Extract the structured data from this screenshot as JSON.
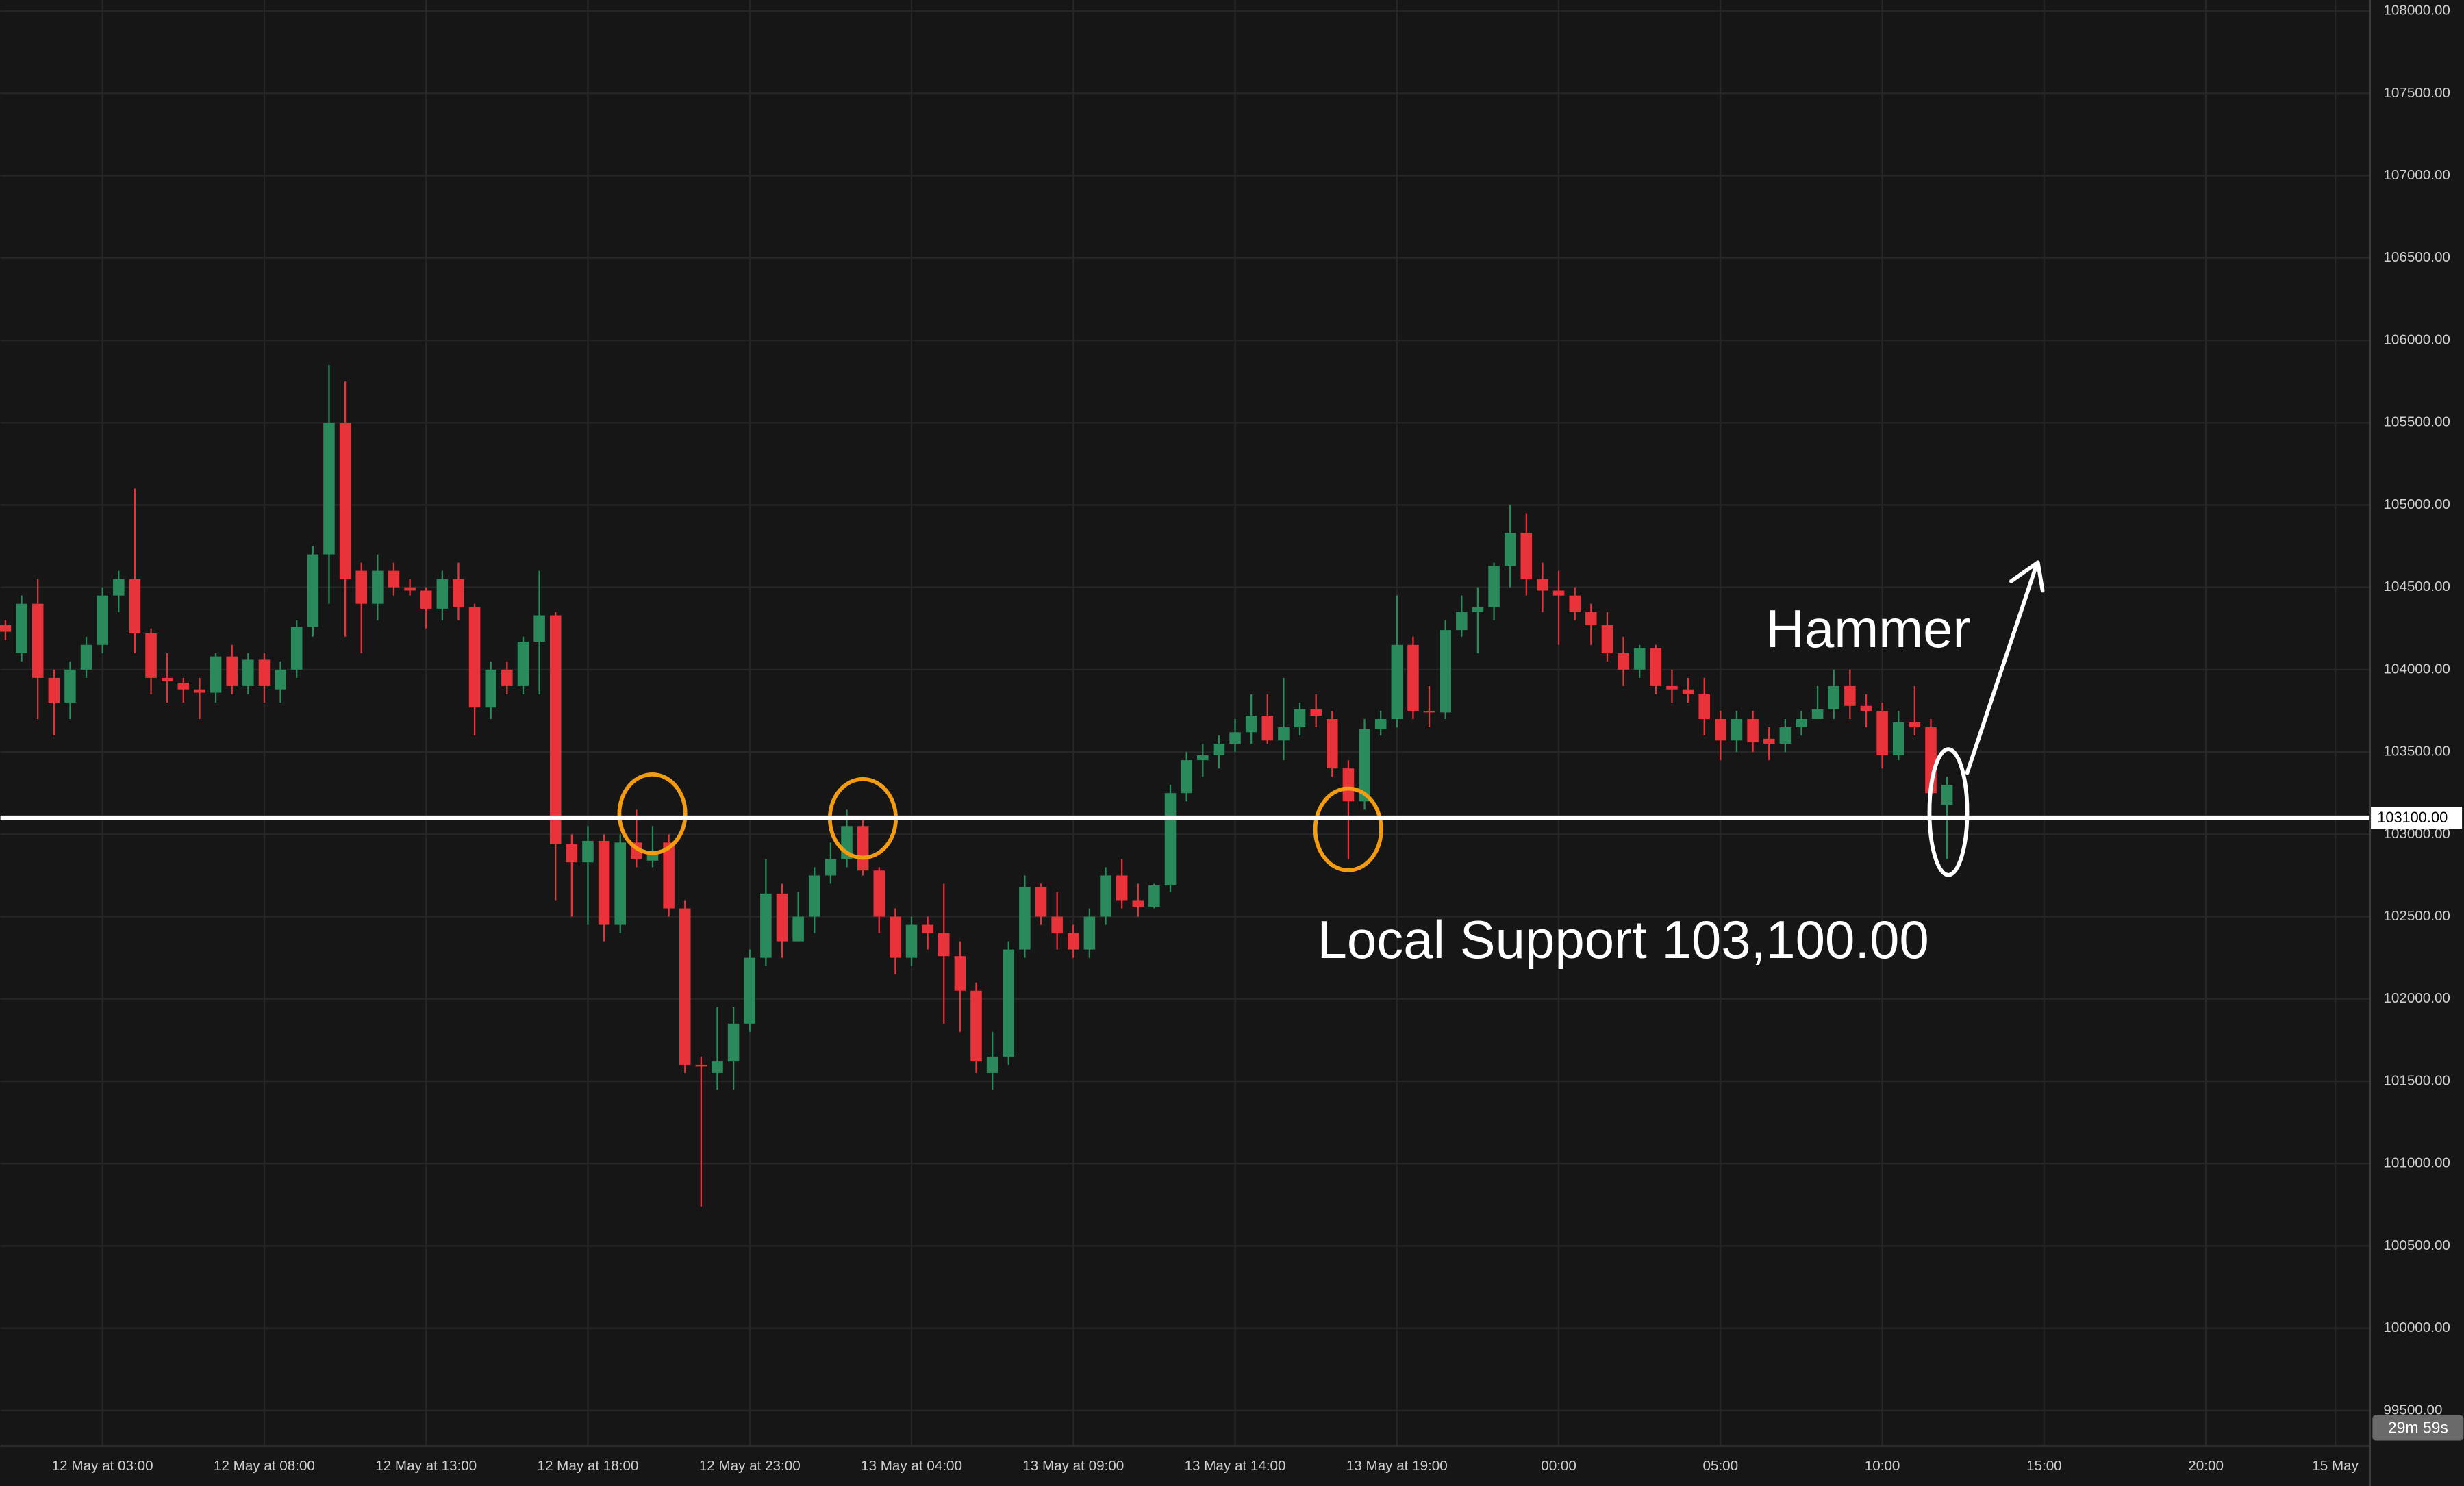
{
  "chart_data": {
    "type": "candlestick",
    "open": [
      104270,
      104100,
      104400,
      103950,
      103800,
      104000,
      104150,
      104450,
      104550,
      104220,
      103950,
      103920,
      103880,
      103860,
      104080,
      103900,
      104060,
      103880,
      104000,
      104260,
      104700,
      105500,
      104600,
      104400,
      104600,
      104500,
      104480,
      104370,
      104550,
      104380,
      103770,
      104000,
      103900,
      104170,
      104330,
      102940,
      102830,
      102960,
      102450,
      102950,
      102840,
      102950,
      102550,
      101600,
      101550,
      101620,
      101850,
      102250,
      102640,
      102350,
      102500,
      102750,
      102850,
      103050,
      102780,
      102500,
      102250,
      102450,
      102400,
      102260,
      102050,
      101550,
      101650,
      102300,
      102680,
      102500,
      102400,
      102300,
      102500,
      102750,
      102600,
      102560,
      102690,
      103250,
      103450,
      103480,
      103550,
      103620,
      103720,
      103570,
      103650,
      103760,
      103700,
      103400,
      103200,
      103640,
      103700,
      104150,
      103750,
      103740,
      104240,
      104350,
      104380,
      104630,
      104830,
      104550,
      104480,
      104450,
      104350,
      104270,
      104100,
      104000,
      104130,
      103900,
      103880,
      103850,
      103700,
      103570,
      103700,
      103580,
      103550,
      103650,
      103700,
      103760,
      103900,
      103780,
      103750,
      103480,
      103680,
      103650,
      103180
    ],
    "high": [
      104300,
      104450,
      104550,
      104000,
      104050,
      104200,
      104500,
      104600,
      105100,
      104250,
      104100,
      103950,
      103950,
      104100,
      104150,
      104100,
      104100,
      104050,
      104300,
      104750,
      105850,
      105750,
      104650,
      104700,
      104650,
      104550,
      104500,
      104600,
      104650,
      104400,
      104050,
      104050,
      104200,
      104600,
      104350,
      103000,
      103050,
      103000,
      103000,
      103150,
      103050,
      103000,
      102600,
      101650,
      101950,
      101950,
      102300,
      102850,
      102700,
      102650,
      102800,
      102950,
      103150,
      103100,
      102800,
      102550,
      102500,
      102500,
      102700,
      102350,
      102100,
      101800,
      102350,
      102750,
      102700,
      102650,
      102450,
      102550,
      102800,
      102850,
      102700,
      102700,
      103300,
      103500,
      103550,
      103600,
      103700,
      103850,
      103850,
      103950,
      103800,
      103850,
      103750,
      103450,
      103700,
      103750,
      104450,
      104200,
      103900,
      104300,
      104450,
      104500,
      104650,
      105000,
      104950,
      104650,
      104600,
      104500,
      104400,
      104350,
      104200,
      104150,
      104150,
      104000,
      103950,
      103950,
      103750,
      103750,
      103750,
      103650,
      103700,
      103750,
      103900,
      104000,
      104000,
      103850,
      103800,
      103750,
      103900,
      103700,
      103350
    ],
    "low": [
      104180,
      104050,
      103700,
      103600,
      103700,
      103950,
      104100,
      104350,
      104100,
      103850,
      103800,
      103800,
      103700,
      103800,
      103850,
      103850,
      103800,
      103800,
      103950,
      104200,
      104400,
      104200,
      104100,
      104300,
      104450,
      104450,
      104250,
      104300,
      104300,
      103600,
      103700,
      103850,
      103850,
      103850,
      102600,
      102500,
      102450,
      102350,
      102400,
      102800,
      102800,
      102500,
      101550,
      100740,
      101450,
      101450,
      101800,
      102200,
      102250,
      102350,
      102400,
      102700,
      102800,
      102750,
      102400,
      102150,
      102200,
      102300,
      101850,
      101800,
      101550,
      101450,
      101600,
      102250,
      102450,
      102300,
      102250,
      102250,
      102450,
      102550,
      102500,
      102550,
      102650,
      103200,
      103350,
      103400,
      103500,
      103550,
      103550,
      103450,
      103600,
      103650,
      103350,
      102850,
      103150,
      103600,
      103650,
      103700,
      103650,
      103700,
      104200,
      104100,
      104300,
      104500,
      104450,
      104350,
      104150,
      104300,
      104150,
      104050,
      103900,
      103950,
      103850,
      103800,
      103800,
      103600,
      103450,
      103500,
      103500,
      103450,
      103500,
      103600,
      103700,
      103700,
      103700,
      103650,
      103400,
      103450,
      103600,
      103200,
      102850
    ],
    "close": [
      104230,
      104400,
      103950,
      103800,
      104000,
      104150,
      104450,
      104550,
      104220,
      103950,
      103930,
      103880,
      103860,
      104080,
      103900,
      104060,
      103900,
      104000,
      104260,
      104700,
      105500,
      104550,
      104400,
      104600,
      104500,
      104480,
      104370,
      104550,
      104380,
      103770,
      104000,
      103900,
      104170,
      104330,
      102940,
      102830,
      102960,
      102450,
      102950,
      102850,
      102900,
      102550,
      101600,
      101590,
      101620,
      101850,
      102250,
      102640,
      102350,
      102500,
      102750,
      102850,
      103050,
      102780,
      102500,
      102250,
      102450,
      102400,
      102260,
      102050,
      101620,
      101650,
      102300,
      102680,
      102500,
      102400,
      102300,
      102500,
      102750,
      102600,
      102560,
      102690,
      103250,
      103450,
      103480,
      103550,
      103620,
      103720,
      103570,
      103650,
      103760,
      103720,
      103400,
      103200,
      103640,
      103700,
      104150,
      103750,
      103740,
      104240,
      104350,
      104380,
      104630,
      104830,
      104550,
      104480,
      104450,
      104350,
      104270,
      104100,
      104000,
      104130,
      103900,
      103880,
      103850,
      103700,
      103570,
      103700,
      103560,
      103550,
      103650,
      103700,
      103760,
      103900,
      103780,
      103750,
      103480,
      103680,
      103650,
      103250,
      103300
    ],
    "up_color": "#2a8a5c",
    "down_color": "#e8333a",
    "xlim": [
      -0.31,
      146.1
    ],
    "xticks": [
      {
        "value": 6,
        "label": "12 May at 03:00"
      },
      {
        "value": 16,
        "label": "12 May at 08:00"
      },
      {
        "value": 26,
        "label": "12 May at 13:00"
      },
      {
        "value": 36,
        "label": "12 May at 18:00"
      },
      {
        "value": 46,
        "label": "12 May at 23:00"
      },
      {
        "value": 56,
        "label": "13 May at 04:00"
      },
      {
        "value": 66,
        "label": "13 May at 09:00"
      },
      {
        "value": 76,
        "label": "13 May at 14:00"
      },
      {
        "value": 86,
        "label": "13 May at 19:00"
      },
      {
        "value": 96,
        "label": "00:00"
      },
      {
        "value": 106,
        "label": "05:00"
      },
      {
        "value": 116,
        "label": "10:00"
      },
      {
        "value": 126,
        "label": "15:00"
      },
      {
        "value": 136,
        "label": "20:00"
      },
      {
        "value": 144,
        "label": "15 May"
      }
    ],
    "ylim": [
      99290,
      108067
    ],
    "yticks": [
      {
        "value": 99500,
        "label": "99500.00"
      },
      {
        "value": 100000,
        "label": "100000.00"
      },
      {
        "value": 100500,
        "label": "100500.00"
      },
      {
        "value": 101000,
        "label": "101000.00"
      },
      {
        "value": 101500,
        "label": "101500.00"
      },
      {
        "value": 102000,
        "label": "102000.00"
      },
      {
        "value": 102500,
        "label": "102500.00"
      },
      {
        "value": 103000,
        "label": "103000.00"
      },
      {
        "value": 103500,
        "label": "103500.00"
      },
      {
        "value": 104000,
        "label": "104000.00"
      },
      {
        "value": 104500,
        "label": "104500.00"
      },
      {
        "value": 105000,
        "label": "105000.00"
      },
      {
        "value": 105500,
        "label": "105500.00"
      },
      {
        "value": 106000,
        "label": "106000.00"
      },
      {
        "value": 106500,
        "label": "106500.00"
      },
      {
        "value": 107000,
        "label": "107000.00"
      },
      {
        "value": 107500,
        "label": "107500.00"
      },
      {
        "value": 108000,
        "label": "108000.00"
      }
    ],
    "grid": true,
    "support": {
      "value": 103100,
      "label": "103100.00",
      "annotation": "Local Support 103,100.00"
    },
    "pattern_annotation": "Hammer",
    "countdown": "29m 59s"
  }
}
